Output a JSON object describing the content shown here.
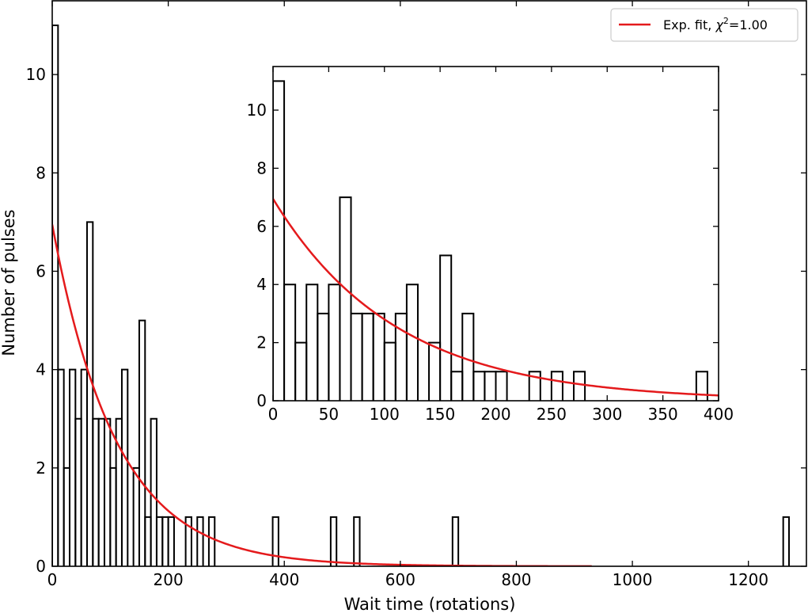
{
  "chart_data": {
    "type": "histogram",
    "xlabel": "Wait time (rotations)",
    "ylabel": "Number of pulses",
    "legend": {
      "placement": "top-right",
      "entries": [
        {
          "label_prefix": "Exp. fit, ",
          "chi": "χ",
          "sup": "2",
          "label_suffix": "=1.00",
          "color": "#e41a1c"
        }
      ]
    },
    "colors": {
      "histogram": "#000000",
      "fit": "#e41a1c"
    },
    "main": {
      "xlim": [
        0,
        1300
      ],
      "ylim": [
        0,
        11.5
      ],
      "xticks": [
        0,
        200,
        400,
        600,
        800,
        1000,
        1200
      ],
      "yticks": [
        0,
        2,
        4,
        6,
        8,
        10
      ],
      "bin_width": 10,
      "bins": [
        {
          "x": 0,
          "count": 11
        },
        {
          "x": 10,
          "count": 4
        },
        {
          "x": 20,
          "count": 2
        },
        {
          "x": 30,
          "count": 4
        },
        {
          "x": 40,
          "count": 3
        },
        {
          "x": 50,
          "count": 4
        },
        {
          "x": 60,
          "count": 7
        },
        {
          "x": 70,
          "count": 3
        },
        {
          "x": 80,
          "count": 3
        },
        {
          "x": 90,
          "count": 3
        },
        {
          "x": 100,
          "count": 2
        },
        {
          "x": 110,
          "count": 3
        },
        {
          "x": 120,
          "count": 4
        },
        {
          "x": 130,
          "count": 0
        },
        {
          "x": 140,
          "count": 2
        },
        {
          "x": 150,
          "count": 5
        },
        {
          "x": 160,
          "count": 1
        },
        {
          "x": 170,
          "count": 3
        },
        {
          "x": 180,
          "count": 1
        },
        {
          "x": 190,
          "count": 1
        },
        {
          "x": 200,
          "count": 1
        },
        {
          "x": 230,
          "count": 1
        },
        {
          "x": 250,
          "count": 1
        },
        {
          "x": 270,
          "count": 1
        },
        {
          "x": 380,
          "count": 1
        },
        {
          "x": 480,
          "count": 1
        },
        {
          "x": 520,
          "count": 1
        },
        {
          "x": 690,
          "count": 1
        },
        {
          "x": 1260,
          "count": 1
        }
      ]
    },
    "inset": {
      "xlim": [
        0,
        400
      ],
      "ylim": [
        0,
        11.5
      ],
      "xticks": [
        0,
        50,
        100,
        150,
        200,
        250,
        300,
        350,
        400
      ],
      "yticks": [
        0,
        2,
        4,
        6,
        8,
        10
      ]
    },
    "fit": {
      "A": 6.95,
      "tau": 110,
      "main_xmax": 930
    }
  }
}
